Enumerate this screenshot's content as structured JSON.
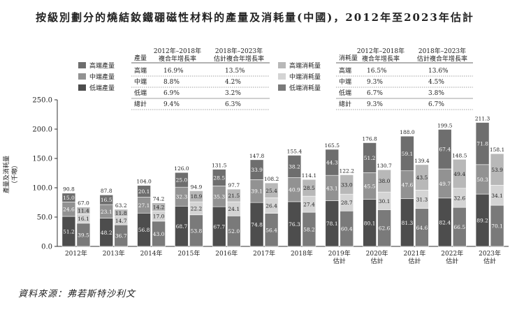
{
  "title": "按級別劃分的燒結釹鐵硼磁性材料的產量及消耗量(中國)，2012年至2023年估計",
  "source": "資料來源：弗若斯特沙利文",
  "chart_data": {
    "type": "bar",
    "subtype": "stacked-grouped",
    "ylabel": "產量及消耗量\n（千噸）",
    "ylim": [
      0,
      250
    ],
    "yticks": [
      "0.0",
      "50.0",
      "100.0",
      "150.0",
      "200.0",
      "250.0"
    ],
    "categories": [
      "2012年",
      "2013年",
      "2014年",
      "2015年",
      "2016年",
      "2017年",
      "2018年",
      "2019年\n估計",
      "2020年\n估計",
      "2021年\n估計",
      "2022年\n估計",
      "2023年\n估計"
    ],
    "production": {
      "series": [
        {
          "name": "低端產量",
          "values": [
            51.2,
            48.2,
            56.8,
            68.7,
            67.7,
            74.8,
            76.3,
            78.1,
            80.1,
            81.3,
            82.4,
            89.2
          ]
        },
        {
          "name": "中端產量",
          "values": [
            24.6,
            23.1,
            27.1,
            32.3,
            35.3,
            39.1,
            40.9,
            43.1,
            45.5,
            47.6,
            49.7,
            50.3
          ]
        },
        {
          "name": "高端產量",
          "values": [
            15.0,
            16.5,
            20.1,
            25.0,
            28.5,
            33.9,
            38.2,
            44.3,
            51.2,
            59.1,
            67.4,
            71.8
          ]
        }
      ],
      "totals": [
        90.8,
        87.8,
        104.0,
        126.0,
        131.5,
        147.8,
        155.4,
        165.5,
        176.8,
        188.0,
        199.5,
        211.3
      ]
    },
    "consumption": {
      "series": [
        {
          "name": "低端消耗量",
          "values": [
            39.5,
            36.7,
            43.0,
            53.8,
            52.0,
            56.4,
            58.2,
            60.4,
            62.6,
            64.6,
            66.5,
            70.1
          ]
        },
        {
          "name": "中端消耗量",
          "values": [
            16.1,
            14.7,
            17.0,
            22.2,
            24.1,
            26.4,
            27.4,
            28.7,
            30.1,
            31.3,
            32.6,
            34.1
          ]
        },
        {
          "name": "高端消耗量",
          "values": [
            11.4,
            11.8,
            14.2,
            18.9,
            21.5,
            25.4,
            28.5,
            33.0,
            38.0,
            43.5,
            49.4,
            53.9
          ]
        }
      ],
      "totals": [
        67.0,
        63.2,
        74.2,
        94.9,
        97.7,
        108.2,
        114.1,
        122.2,
        130.7,
        139.4,
        148.5,
        158.1
      ]
    },
    "colors": {
      "prod_low": "#4d4d4d",
      "prod_mid": "#929292",
      "prod_high": "#6e6e6e",
      "cons_low": "#7a7a7a",
      "cons_mid": "#d4d4d4",
      "cons_high": "#b8b8b8"
    },
    "legend_left": [
      "高端產量",
      "中端產量",
      "低端產量"
    ],
    "legend_right": [
      "高端消耗量",
      "中端消耗量",
      "低端消耗量"
    ],
    "cagr_production": {
      "headers": [
        "產量",
        "2012年–2018年\n複合年增長率",
        "2018年–2023年\n估計複合年增長率"
      ],
      "rows": [
        [
          "高端",
          "16.9%",
          "13.5%"
        ],
        [
          "中端",
          "8.8%",
          "4.2%"
        ],
        [
          "低端",
          "6.9%",
          "3.2%"
        ],
        [
          "總計",
          "9.4%",
          "6.3%"
        ]
      ]
    },
    "cagr_consumption": {
      "headers": [
        "消耗量",
        "2012年–2018年\n複合年增長率",
        "2018年–2023年\n估計複合年增長率"
      ],
      "rows": [
        [
          "高端",
          "16.5%",
          "13.6%"
        ],
        [
          "中端",
          "9.3%",
          "4.5%"
        ],
        [
          "低端",
          "6.7%",
          "3.8%"
        ],
        [
          "總計",
          "9.3%",
          "6.7%"
        ]
      ]
    }
  }
}
